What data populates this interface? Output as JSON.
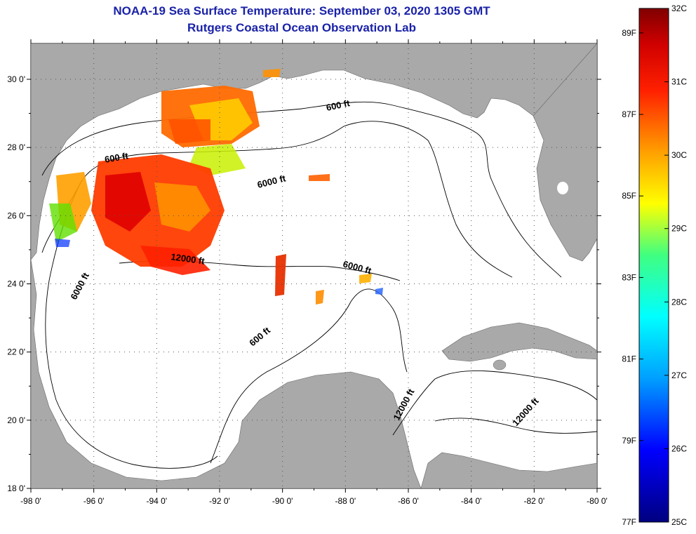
{
  "title": "NOAA-19 Sea Surface Temperature:  September 03, 2020 1305 GMT",
  "subtitle": "Rutgers Coastal Ocean Observation Lab",
  "lat_labels": [
    "30 0'",
    "28 0'",
    "26 0'",
    "24 0'",
    "22 0'",
    "20 0'",
    "18 0'"
  ],
  "lon_labels": [
    "-98 0'",
    "-96 0'",
    "-94 0'",
    "-92 0'",
    "-90 0'",
    "-88 0'",
    "-86 0'",
    "-84 0'",
    "-82 0'",
    "-80 0'"
  ],
  "contour_labels": [
    "600 ft",
    "600 ft",
    "6000 ft",
    "12000 ft",
    "6000 ft",
    "6000 ft",
    "600 ft",
    "12000 ft",
    "12000 ft"
  ],
  "colorbar": {
    "celsius_labels": [
      "32C",
      "31C",
      "30C",
      "29C",
      "28C",
      "27C",
      "26C",
      "25C"
    ],
    "fahrenheit_labels": [
      "89F",
      "87F",
      "85F",
      "83F",
      "81F",
      "79F",
      "77F"
    ]
  },
  "colors": {
    "land": "#a9a9a9",
    "ocean": "#ffffff",
    "title": "#1a22a8",
    "contour": "#000000"
  }
}
